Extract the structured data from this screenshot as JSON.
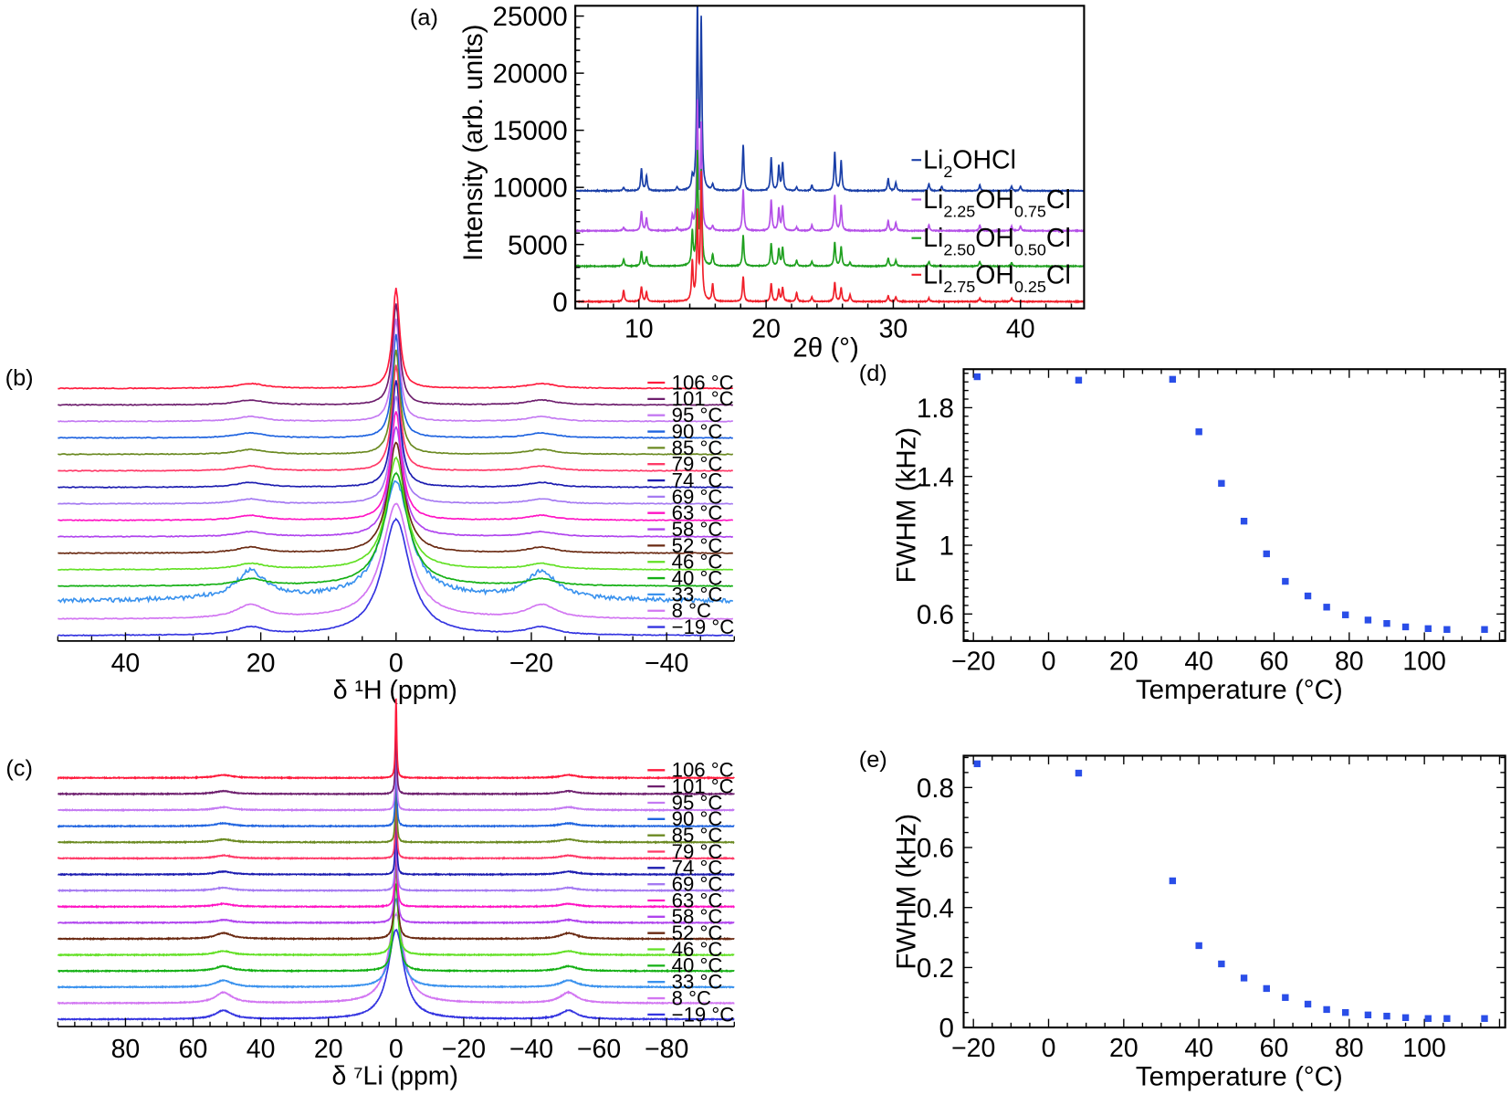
{
  "chart_data": [
    {
      "panel": "a",
      "panel_label": "(a)",
      "type": "line",
      "xlabel": "2θ (°)",
      "ylabel": "Intensity (arb. units)",
      "xlim": [
        5,
        45
      ],
      "ylim": [
        -600,
        25900
      ],
      "xticks": [
        10,
        20,
        30,
        40
      ],
      "yticks": [
        0,
        5000,
        10000,
        15000,
        20000,
        25000
      ],
      "legend_placement": "right",
      "series": [
        {
          "name_parts": [
            [
              "Li",
              ""
            ],
            [
              "2",
              "sub"
            ],
            [
              "OHCl",
              ""
            ]
          ],
          "color": "#1a3fa8",
          "baseline": 9700,
          "peaks": [
            [
              8.8,
              300
            ],
            [
              10.2,
              1900
            ],
            [
              10.6,
              1300
            ],
            [
              13.0,
              300
            ],
            [
              14.2,
              1000
            ],
            [
              14.6,
              16000
            ],
            [
              14.9,
              14500
            ],
            [
              15.8,
              500
            ],
            [
              18.2,
              4000
            ],
            [
              20.4,
              2900
            ],
            [
              21.0,
              2100
            ],
            [
              21.3,
              2400
            ],
            [
              22.4,
              300
            ],
            [
              23.6,
              500
            ],
            [
              25.4,
              3400
            ],
            [
              25.9,
              2600
            ],
            [
              29.6,
              1100
            ],
            [
              30.2,
              700
            ],
            [
              32.8,
              600
            ],
            [
              33.8,
              400
            ],
            [
              36.8,
              500
            ],
            [
              39.3,
              400
            ],
            [
              40.0,
              400
            ]
          ]
        },
        {
          "name_parts": [
            [
              "Li",
              ""
            ],
            [
              "2.25",
              "sub"
            ],
            [
              "OH",
              ""
            ],
            [
              "0.75",
              "sub"
            ],
            [
              "Cl",
              ""
            ]
          ],
          "color": "#b450e8",
          "baseline": 6200,
          "peaks": [
            [
              8.8,
              300
            ],
            [
              10.2,
              1700
            ],
            [
              10.6,
              1100
            ],
            [
              13.0,
              250
            ],
            [
              14.2,
              1100
            ],
            [
              14.6,
              11000
            ],
            [
              14.9,
              9000
            ],
            [
              15.8,
              400
            ],
            [
              18.2,
              3600
            ],
            [
              20.4,
              2700
            ],
            [
              21.0,
              1900
            ],
            [
              21.3,
              2100
            ],
            [
              22.4,
              300
            ],
            [
              23.6,
              500
            ],
            [
              25.4,
              3100
            ],
            [
              25.9,
              2200
            ],
            [
              29.6,
              900
            ],
            [
              30.2,
              700
            ],
            [
              32.8,
              500
            ],
            [
              36.8,
              500
            ],
            [
              39.3,
              400
            ],
            [
              40.0,
              400
            ]
          ]
        },
        {
          "name_parts": [
            [
              "Li",
              ""
            ],
            [
              "2.50",
              "sub"
            ],
            [
              "OH",
              ""
            ],
            [
              "0.50",
              "sub"
            ],
            [
              "Cl",
              ""
            ]
          ],
          "color": "#1fa01f",
          "baseline": 3100,
          "peaks": [
            [
              8.8,
              600
            ],
            [
              10.2,
              1300
            ],
            [
              10.6,
              800
            ],
            [
              14.2,
              2900
            ],
            [
              14.6,
              9700
            ],
            [
              14.9,
              8000
            ],
            [
              15.8,
              1000
            ],
            [
              18.2,
              2700
            ],
            [
              20.4,
              2000
            ],
            [
              21.0,
              1500
            ],
            [
              21.3,
              1600
            ],
            [
              22.4,
              500
            ],
            [
              23.6,
              400
            ],
            [
              25.4,
              2100
            ],
            [
              25.9,
              1700
            ],
            [
              26.6,
              300
            ],
            [
              29.6,
              700
            ],
            [
              30.2,
              500
            ],
            [
              32.8,
              400
            ],
            [
              36.8,
              400
            ],
            [
              39.3,
              300
            ]
          ]
        },
        {
          "name_parts": [
            [
              "Li",
              ""
            ],
            [
              "2.75",
              "sub"
            ],
            [
              "OH",
              ""
            ],
            [
              "0.25",
              "sub"
            ],
            [
              "Cl",
              ""
            ]
          ],
          "color": "#f0202a",
          "baseline": 0,
          "peaks": [
            [
              8.8,
              1000
            ],
            [
              10.2,
              1300
            ],
            [
              10.6,
              800
            ],
            [
              14.2,
              3400
            ],
            [
              14.6,
              7500
            ],
            [
              14.9,
              11000
            ],
            [
              15.8,
              1500
            ],
            [
              18.2,
              2200
            ],
            [
              20.4,
              1600
            ],
            [
              21.0,
              1000
            ],
            [
              21.3,
              1200
            ],
            [
              22.4,
              800
            ],
            [
              23.6,
              400
            ],
            [
              25.4,
              1700
            ],
            [
              25.9,
              1200
            ],
            [
              26.6,
              600
            ],
            [
              29.6,
              500
            ],
            [
              30.2,
              400
            ],
            [
              32.8,
              300
            ],
            [
              36.8,
              300
            ],
            [
              39.3,
              300
            ]
          ]
        }
      ]
    },
    {
      "panel": "b",
      "panel_label": "(b)",
      "type": "line",
      "xlabel": "δ ¹H (ppm)",
      "xlim": [
        50,
        -50
      ],
      "xticks": [
        40,
        20,
        0,
        -20,
        -40
      ],
      "legend_placement": "right",
      "series": [
        {
          "name": "106 °C",
          "color": "#ff1a3c"
        },
        {
          "name": "101 °C",
          "color": "#6e1f6e"
        },
        {
          "name": "95 °C",
          "color": "#c47af2"
        },
        {
          "name": "90 °C",
          "color": "#1f64e0"
        },
        {
          "name": "85 °C",
          "color": "#6b8a22"
        },
        {
          "name": "79 °C",
          "color": "#ff3a68"
        },
        {
          "name": "74 °C",
          "color": "#1c1cb0"
        },
        {
          "name": "69 °C",
          "color": "#a57af2"
        },
        {
          "name": "63 °C",
          "color": "#ff14c4"
        },
        {
          "name": "58 °C",
          "color": "#b044ee"
        },
        {
          "name": "52 °C",
          "color": "#6a2a12"
        },
        {
          "name": "46 °C",
          "color": "#62e024"
        },
        {
          "name": "40 °C",
          "color": "#14b014"
        },
        {
          "name": "33 °C",
          "color": "#3a92ee"
        },
        {
          "name": "8 °C",
          "color": "#d276f2"
        },
        {
          "name": "−19 °C",
          "color": "#3434e0"
        }
      ]
    },
    {
      "panel": "c",
      "panel_label": "(c)",
      "type": "line",
      "xlabel": "δ ⁷Li (ppm)",
      "xlim": [
        100,
        -100
      ],
      "xticks": [
        80,
        60,
        40,
        20,
        0,
        -20,
        -40,
        -60,
        -80
      ],
      "legend_placement": "right",
      "series": [
        {
          "name": "106 °C",
          "color": "#ff1a3c"
        },
        {
          "name": "101 °C",
          "color": "#6e1f6e"
        },
        {
          "name": "95 °C",
          "color": "#c47af2"
        },
        {
          "name": "90 °C",
          "color": "#1f64e0"
        },
        {
          "name": "85 °C",
          "color": "#6b8a22"
        },
        {
          "name": "79 °C",
          "color": "#ff3a68"
        },
        {
          "name": "74 °C",
          "color": "#1c1cb0"
        },
        {
          "name": "69 °C",
          "color": "#a57af2"
        },
        {
          "name": "63 °C",
          "color": "#ff14c4"
        },
        {
          "name": "58 °C",
          "color": "#b044ee"
        },
        {
          "name": "52 °C",
          "color": "#6a2a12"
        },
        {
          "name": "46 °C",
          "color": "#62e024"
        },
        {
          "name": "40 °C",
          "color": "#14b014"
        },
        {
          "name": "33 °C",
          "color": "#3a92ee"
        },
        {
          "name": "8 °C",
          "color": "#d276f2"
        },
        {
          "name": "−19 °C",
          "color": "#3434e0"
        }
      ]
    },
    {
      "panel": "d",
      "panel_label": "(d)",
      "type": "scatter",
      "xlabel": "Temperature (°C)",
      "ylabel": "FWHM (kHz)",
      "xlim": [
        -22.6,
        121.5
      ],
      "ylim": [
        0.443,
        2.024
      ],
      "xticks": [
        -20,
        0,
        20,
        40,
        60,
        80,
        100
      ],
      "ytick_labels": [
        "0.6",
        "1",
        "1.4",
        "1.8"
      ],
      "yticks": [
        0.6,
        1.0,
        1.4,
        1.8
      ],
      "marker_color": "#2a4ee8",
      "x": [
        -19,
        8,
        33,
        40,
        46,
        52,
        58,
        63,
        69,
        74,
        79,
        85,
        90,
        95,
        101,
        106,
        116
      ],
      "y": [
        1.98,
        1.96,
        1.965,
        1.66,
        1.36,
        1.14,
        0.95,
        0.79,
        0.705,
        0.64,
        0.595,
        0.565,
        0.545,
        0.525,
        0.515,
        0.51,
        0.51
      ]
    },
    {
      "panel": "e",
      "panel_label": "(e)",
      "type": "scatter",
      "xlabel": "Temperature (°C)",
      "ylabel": "FWHM (kHz)",
      "xlim": [
        -22.6,
        121.5
      ],
      "ylim": [
        0,
        0.906
      ],
      "xticks": [
        -20,
        0,
        20,
        40,
        60,
        80,
        100
      ],
      "ytick_labels": [
        "0",
        "0.2",
        "0.4",
        "0.6",
        "0.8"
      ],
      "yticks": [
        0,
        0.2,
        0.4,
        0.6,
        0.8
      ],
      "marker_color": "#2a4ee8",
      "x": [
        -19,
        8,
        33,
        40,
        46,
        52,
        58,
        63,
        69,
        74,
        79,
        85,
        90,
        95,
        101,
        106,
        116
      ],
      "y": [
        0.879,
        0.848,
        0.489,
        0.273,
        0.212,
        0.165,
        0.13,
        0.1,
        0.078,
        0.06,
        0.05,
        0.042,
        0.038,
        0.033,
        0.03,
        0.03,
        0.03
      ]
    }
  ]
}
